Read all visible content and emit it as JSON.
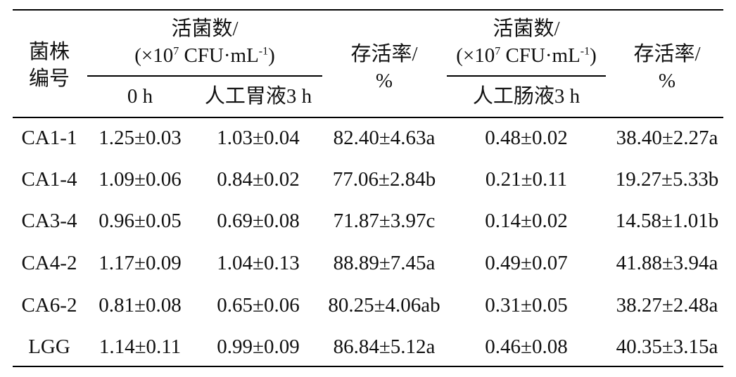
{
  "table": {
    "header": {
      "strain_line1": "菌株",
      "strain_line2": "编号",
      "viable_count_1": "活菌数/",
      "unit_prefix": "(×10",
      "unit_exp": "7",
      "unit_middle": " CFU·mL",
      "unit_neg": "-1",
      "unit_suffix": ")",
      "survival_1": "存活率/",
      "survival_unit": "%",
      "viable_count_2": "活菌数/",
      "survival_2": "存活率/",
      "time_0h": "0 h",
      "gastric_3h": "人工胃液3 h",
      "intestinal_3h": "人工肠液3 h"
    },
    "rows": [
      {
        "strain": "CA1-1",
        "count_0h": "1.25±0.03",
        "count_gastric": "1.03±0.04",
        "survival_gastric": "82.40±4.63a",
        "count_intestinal": "0.48±0.02",
        "survival_intestinal": "38.40±2.27a"
      },
      {
        "strain": "CA1-4",
        "count_0h": "1.09±0.06",
        "count_gastric": "0.84±0.02",
        "survival_gastric": "77.06±2.84b",
        "count_intestinal": "0.21±0.11",
        "survival_intestinal": "19.27±5.33b"
      },
      {
        "strain": "CA3-4",
        "count_0h": "0.96±0.05",
        "count_gastric": "0.69±0.08",
        "survival_gastric": "71.87±3.97c",
        "count_intestinal": "0.14±0.02",
        "survival_intestinal": "14.58±1.01b"
      },
      {
        "strain": "CA4-2",
        "count_0h": "1.17±0.09",
        "count_gastric": "1.04±0.13",
        "survival_gastric": "88.89±7.45a",
        "count_intestinal": "0.49±0.07",
        "survival_intestinal": "41.88±3.94a"
      },
      {
        "strain": "CA6-2",
        "count_0h": "0.81±0.08",
        "count_gastric": "0.65±0.06",
        "survival_gastric": "80.25±4.06ab",
        "count_intestinal": "0.31±0.05",
        "survival_intestinal": "38.27±2.48a"
      },
      {
        "strain": "LGG",
        "count_0h": "1.14±0.11",
        "count_gastric": "0.99±0.09",
        "survival_gastric": "86.84±5.12a",
        "count_intestinal": "0.46±0.08",
        "survival_intestinal": "40.35±3.15a"
      }
    ]
  }
}
